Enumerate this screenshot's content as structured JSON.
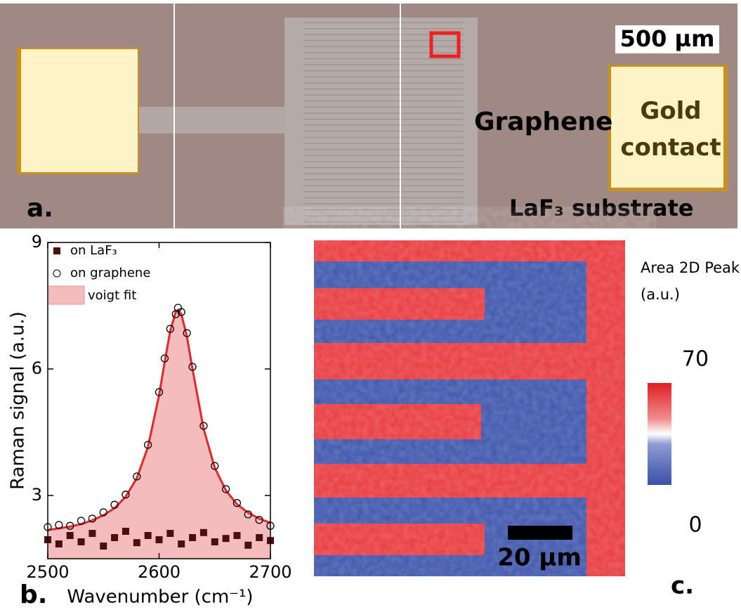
{
  "micrograph": {
    "scale_bar": "500 µm",
    "graphene_label": "Graphene",
    "contact_label": "Gold contact",
    "substrate_label": "LaF₃ substrate",
    "panel_label": "a."
  },
  "chart_data": [
    {
      "type": "scatter",
      "panel_label": "b.",
      "y_label": "Raman signal (a.u.)",
      "x_label": "Wavenumber (cm⁻¹)",
      "xlim": [
        2500,
        2700
      ],
      "xticks": [
        2500,
        2600,
        2700
      ],
      "ylim": [
        1.5,
        9
      ],
      "yticks": [
        3,
        6,
        9
      ],
      "series": [
        {
          "name": "on LaF₃",
          "color": "#4a1010",
          "marker": "square",
          "x": [
            2500,
            2510,
            2520,
            2530,
            2540,
            2550,
            2560,
            2570,
            2580,
            2590,
            2600,
            2610,
            2620,
            2630,
            2640,
            2650,
            2660,
            2670,
            2680,
            2690,
            2700
          ],
          "values": [
            1.95,
            1.85,
            2.05,
            1.9,
            2.1,
            1.8,
            2.0,
            2.15,
            1.88,
            2.05,
            1.95,
            2.1,
            1.85,
            2.0,
            2.12,
            1.9,
            1.98,
            2.05,
            1.82,
            2.0,
            1.93
          ]
        },
        {
          "name": "on graphene",
          "color": "#000000",
          "marker": "circle",
          "x": [
            2500,
            2510,
            2520,
            2530,
            2540,
            2550,
            2560,
            2570,
            2580,
            2590,
            2600,
            2605,
            2610,
            2615,
            2617,
            2620,
            2625,
            2630,
            2640,
            2650,
            2660,
            2670,
            2680,
            2690,
            2700
          ],
          "values": [
            2.25,
            2.3,
            2.28,
            2.4,
            2.45,
            2.6,
            2.78,
            3.02,
            3.45,
            4.2,
            5.45,
            6.25,
            6.95,
            7.3,
            7.45,
            7.35,
            6.85,
            6.05,
            4.65,
            3.7,
            3.15,
            2.82,
            2.55,
            2.42,
            2.28
          ]
        },
        {
          "name": "voigt fit",
          "color": "#e8262a",
          "fill": "#f4bcbc",
          "marker": "line",
          "x": [
            2500,
            2510,
            2520,
            2530,
            2540,
            2550,
            2560,
            2570,
            2580,
            2590,
            2600,
            2605,
            2610,
            2615,
            2617,
            2620,
            2625,
            2630,
            2640,
            2650,
            2660,
            2670,
            2680,
            2690,
            2700
          ],
          "values": [
            2.18,
            2.22,
            2.26,
            2.32,
            2.41,
            2.53,
            2.7,
            2.97,
            3.41,
            4.15,
            5.38,
            6.16,
            6.9,
            7.36,
            7.4,
            7.3,
            6.77,
            6.0,
            4.58,
            3.66,
            3.12,
            2.79,
            2.59,
            2.45,
            2.35
          ]
        }
      ]
    },
    {
      "type": "heatmap",
      "panel_label": "c.",
      "title": "Area 2D Peak (a.u.)",
      "clim": [
        0,
        70
      ],
      "cticks": [
        0,
        70
      ],
      "scale_bar_label": "20 µm"
    }
  ]
}
